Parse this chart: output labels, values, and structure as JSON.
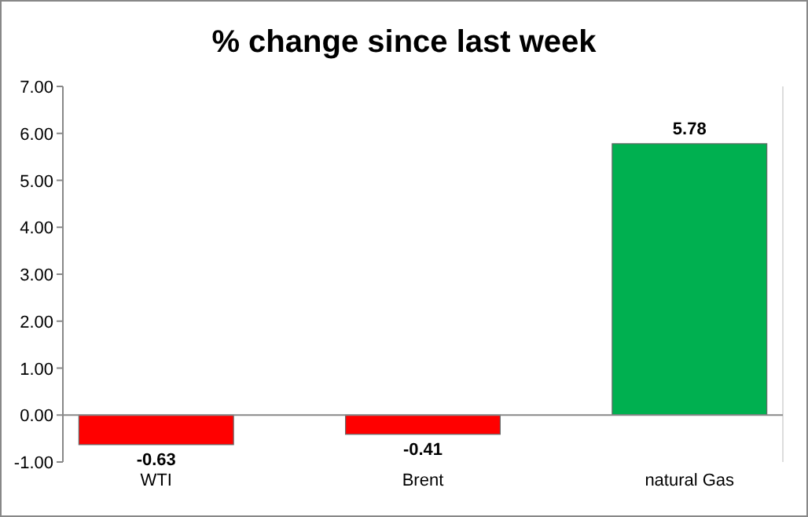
{
  "chart_data": {
    "type": "bar",
    "title": "% change since last week",
    "categories": [
      "WTI",
      "Brent",
      "natural Gas"
    ],
    "values": [
      -0.63,
      -0.41,
      5.78
    ],
    "colors": [
      "#ff0000",
      "#ff0000",
      "#00b050"
    ],
    "ylim": [
      -1,
      7
    ],
    "yticks": [
      {
        "value": -1,
        "label": "-1.00"
      },
      {
        "value": 0,
        "label": "0.00"
      },
      {
        "value": 1,
        "label": "1.00"
      },
      {
        "value": 2,
        "label": "2.00"
      },
      {
        "value": 3,
        "label": "3.00"
      },
      {
        "value": 4,
        "label": "4.00"
      },
      {
        "value": 5,
        "label": "5.00"
      },
      {
        "value": 6,
        "label": "6.00"
      },
      {
        "value": 7,
        "label": "7.00"
      }
    ],
    "data_labels": true
  }
}
